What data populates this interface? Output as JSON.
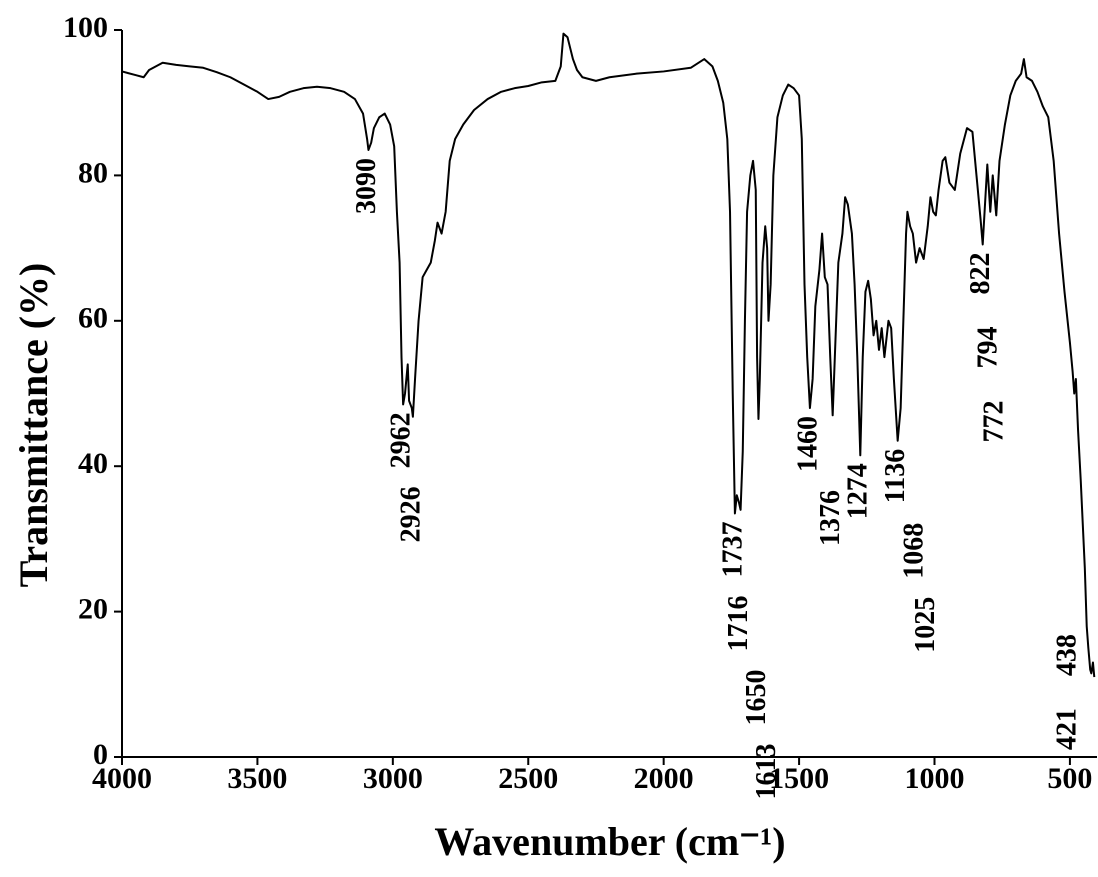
{
  "chart_data": {
    "type": "line",
    "xlabel": "Wavenumber (cm⁻¹)",
    "ylabel": "Transmittance (%)",
    "color": "#000000",
    "xlim": [
      4000,
      400
    ],
    "xticks": [
      4000,
      3500,
      3000,
      2500,
      2000,
      1500,
      1000,
      500
    ],
    "ylim": [
      0,
      100
    ],
    "yticks": [
      0,
      20,
      40,
      60,
      80,
      100
    ],
    "grid": false,
    "x": [
      4000,
      3950,
      3920,
      3900,
      3850,
      3800,
      3750,
      3700,
      3650,
      3600,
      3550,
      3500,
      3460,
      3420,
      3380,
      3330,
      3280,
      3230,
      3180,
      3140,
      3110,
      3095,
      3090,
      3080,
      3070,
      3050,
      3030,
      3010,
      2995,
      2985,
      2975,
      2968,
      2962,
      2955,
      2945,
      2940,
      2930,
      2926,
      2918,
      2905,
      2890,
      2875,
      2860,
      2845,
      2835,
      2820,
      2805,
      2790,
      2770,
      2740,
      2700,
      2650,
      2600,
      2550,
      2500,
      2450,
      2400,
      2380,
      2370,
      2355,
      2345,
      2335,
      2320,
      2300,
      2250,
      2200,
      2100,
      2000,
      1900,
      1850,
      1820,
      1800,
      1780,
      1765,
      1755,
      1745,
      1737,
      1730,
      1722,
      1716,
      1708,
      1700,
      1692,
      1680,
      1670,
      1660,
      1655,
      1650,
      1645,
      1635,
      1625,
      1618,
      1613,
      1605,
      1595,
      1580,
      1560,
      1540,
      1520,
      1500,
      1490,
      1480,
      1470,
      1460,
      1450,
      1440,
      1425,
      1415,
      1405,
      1395,
      1385,
      1376,
      1368,
      1355,
      1340,
      1330,
      1320,
      1305,
      1295,
      1285,
      1274,
      1265,
      1255,
      1245,
      1235,
      1225,
      1215,
      1205,
      1195,
      1185,
      1170,
      1160,
      1150,
      1136,
      1125,
      1115,
      1105,
      1100,
      1090,
      1080,
      1068,
      1055,
      1040,
      1025,
      1015,
      1005,
      995,
      985,
      970,
      960,
      945,
      925,
      905,
      880,
      860,
      845,
      830,
      822,
      812,
      805,
      794,
      785,
      772,
      760,
      740,
      720,
      700,
      680,
      670,
      660,
      640,
      620,
      600,
      580,
      560,
      540,
      520,
      500,
      490,
      484,
      478,
      470,
      460,
      450,
      445,
      438,
      432,
      425,
      421,
      415,
      410
    ],
    "values": [
      94.3,
      93.8,
      93.5,
      94.5,
      95.5,
      95.2,
      95.0,
      94.8,
      94.2,
      93.5,
      92.5,
      91.5,
      90.5,
      90.8,
      91.5,
      92.0,
      92.2,
      92.0,
      91.5,
      90.5,
      88.5,
      85.0,
      83.5,
      84.5,
      86.5,
      88.0,
      88.5,
      87.0,
      84.0,
      75.0,
      68.0,
      55.0,
      48.5,
      50.0,
      54.0,
      49.0,
      48.0,
      46.8,
      52.0,
      60.0,
      66.0,
      67.0,
      68.0,
      71.0,
      73.5,
      72.0,
      75.0,
      82.0,
      85.0,
      87.0,
      89.0,
      90.5,
      91.5,
      92.0,
      92.3,
      92.8,
      93.0,
      95.0,
      99.5,
      99.0,
      97.5,
      96.0,
      94.5,
      93.5,
      93.0,
      93.5,
      94.0,
      94.3,
      94.8,
      96.0,
      95.0,
      93.0,
      90.0,
      85.0,
      75.0,
      50.0,
      33.5,
      36.0,
      35.0,
      34.0,
      42.0,
      60.0,
      75.0,
      80.0,
      82.0,
      78.0,
      55.0,
      46.5,
      52.0,
      68.0,
      73.0,
      70.0,
      60.0,
      65.0,
      80.0,
      88.0,
      91.0,
      92.5,
      92.0,
      91.0,
      85.0,
      65.0,
      55.0,
      48.0,
      52.0,
      62.0,
      67.0,
      72.0,
      66.0,
      65.0,
      55.0,
      47.0,
      55.0,
      68.0,
      72.0,
      77.0,
      76.0,
      72.0,
      65.0,
      55.0,
      41.5,
      55.0,
      64.0,
      65.5,
      63.0,
      58.0,
      60.0,
      56.0,
      59.0,
      55.0,
      60.0,
      59.0,
      52.0,
      43.5,
      48.0,
      60.0,
      72.0,
      75.0,
      73.0,
      72.0,
      68.0,
      70.0,
      68.5,
      73.0,
      77.0,
      75.0,
      74.5,
      78.0,
      82.0,
      82.5,
      79.0,
      78.0,
      83.0,
      86.5,
      86.0,
      80.0,
      74.0,
      70.5,
      77.0,
      81.5,
      75.0,
      80.0,
      74.5,
      82.0,
      87.0,
      91.0,
      93.0,
      94.0,
      96.0,
      93.5,
      93.0,
      91.5,
      89.5,
      88.0,
      82.0,
      72.0,
      64.0,
      57.0,
      53.0,
      50.0,
      52.0,
      45.0,
      38.0,
      30.0,
      26.0,
      18.0,
      15.0,
      12.0,
      11.5,
      13.0,
      11.0
    ],
    "peak_labels": [
      3090,
      2962,
      2926,
      1737,
      1716,
      1650,
      1613,
      1460,
      1376,
      1274,
      1136,
      1068,
      1025,
      822,
      794,
      772,
      438,
      421
    ]
  }
}
